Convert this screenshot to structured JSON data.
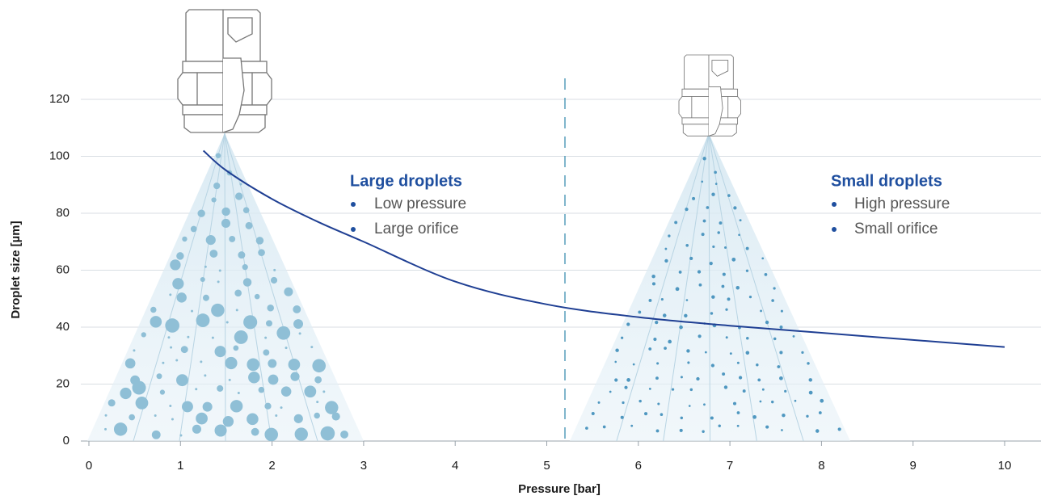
{
  "chart_data": {
    "type": "line",
    "x_label": "Pressure [bar]",
    "y_label": "Droplet size [µm]",
    "x": [
      1.25,
      1.5,
      2,
      2.5,
      3,
      4,
      5,
      6,
      7,
      8,
      9,
      10
    ],
    "series": [
      {
        "color": "#1f3f93",
        "values": [
          102,
          95,
          85,
          77,
          70,
          56,
          48,
          43.5,
          40.5,
          38,
          35.5,
          33
        ]
      }
    ],
    "xlim": [
      0,
      10
    ],
    "xticks": [
      0,
      1,
      2,
      3,
      4,
      5,
      6,
      7,
      8,
      9,
      10
    ],
    "ylim": [
      0,
      120
    ],
    "yticks": [
      0,
      20,
      40,
      60,
      80,
      100,
      120
    ],
    "grid": true,
    "annotations": [
      {
        "title": "Large droplets",
        "items": [
          "Low pressure",
          "Large orifice"
        ]
      },
      {
        "title": "Small droplets",
        "items": [
          "High pressure",
          "Small orifice"
        ]
      }
    ]
  }
}
